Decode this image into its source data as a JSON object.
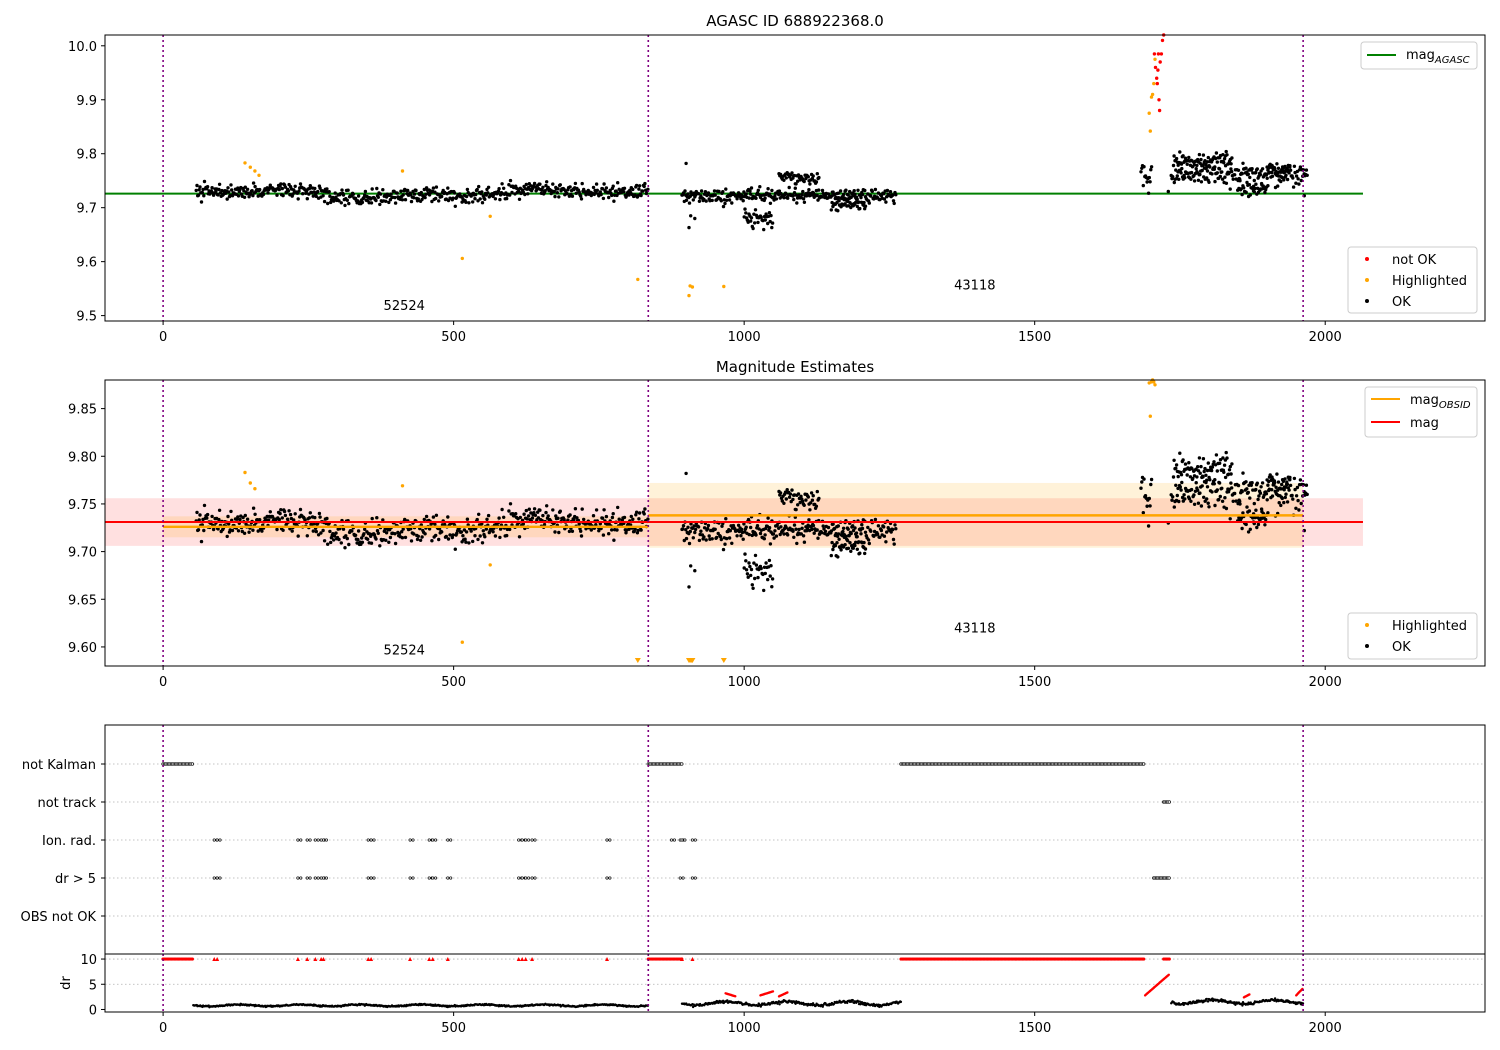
{
  "chart_data": [
    {
      "type": "scatter",
      "title": "AGASC ID 688922368.0",
      "xlim": [
        -100,
        2275
      ],
      "ylim": [
        9.49,
        10.02
      ],
      "xticks": [
        0,
        500,
        1000,
        1500,
        2000
      ],
      "yticks": [
        9.5,
        9.6,
        9.7,
        9.8,
        9.9,
        10.0
      ],
      "ytick_labels": [
        "9.5",
        "9.6",
        "9.7",
        "9.8",
        "9.9",
        "10.0"
      ],
      "obs_boundaries": [
        0,
        835,
        1962
      ],
      "obsid_labels": [
        {
          "x": 415,
          "y": 9.51,
          "text": "52524"
        },
        {
          "x": 1397,
          "y": 9.548,
          "text": "43118"
        }
      ],
      "mag_agasc": 9.726,
      "agasc_line_range": [
        -100,
        2065
      ],
      "colors": {
        "ok": "#000000",
        "highlighted": "#ffa500",
        "not_ok": "#ff0000",
        "mag_agasc": "#008000",
        "boundary": "#800080"
      },
      "legend_top": {
        "position": "top-right",
        "entries": [
          {
            "label": "mag",
            "sub": "AGASC",
            "color": "#008000"
          }
        ]
      },
      "legend_bottom": {
        "position": "bottom-right",
        "entries": [
          {
            "label": "not OK",
            "color": "#ff0000"
          },
          {
            "label": "Highlighted",
            "color": "#ffa500"
          },
          {
            "label": "OK",
            "color": "#000000"
          }
        ]
      },
      "ok_segments": [
        {
          "x": [
            57,
            835
          ],
          "mean": 9.727,
          "sd": 0.012,
          "waves": [
            [
              0.006,
              0.011,
              0.3
            ],
            [
              0.004,
              0.03,
              1.2
            ]
          ]
        },
        {
          "x": [
            893,
            1262
          ],
          "mean": 9.722,
          "sd": 0.011,
          "waves": []
        },
        {
          "x": [
            1683,
            1702
          ],
          "mean": 9.76,
          "sd": 0.025,
          "waves": []
        },
        {
          "x": [
            1735,
            1970
          ],
          "mean": 9.763,
          "sd": 0.016,
          "waves": []
        }
      ],
      "ok_features": [
        {
          "x": [
            1000,
            1050
          ],
          "mean": 9.68,
          "sd": 0.012
        },
        {
          "x": [
            1060,
            1130
          ],
          "mean": 9.755,
          "sd": 0.01
        },
        {
          "x": [
            1150,
            1210
          ],
          "mean": 9.705,
          "sd": 0.012
        },
        {
          "x": [
            1740,
            1840
          ],
          "mean": 9.785,
          "sd": 0.012
        },
        {
          "x": [
            1850,
            1900
          ],
          "mean": 9.735,
          "sd": 0.012
        },
        {
          "x": [
            1900,
            1940
          ],
          "mean": 9.77,
          "sd": 0.012
        }
      ],
      "ok_points": [
        [
          900,
          9.782
        ],
        [
          905,
          9.663
        ],
        [
          908,
          9.685
        ],
        [
          915,
          9.68
        ],
        [
          1730,
          9.73
        ],
        [
          1964,
          9.722
        ]
      ],
      "highlighted_points": [
        [
          141,
          9.783
        ],
        [
          150,
          9.775
        ],
        [
          158,
          9.768
        ],
        [
          165,
          9.76
        ],
        [
          412,
          9.768
        ],
        [
          515,
          9.606
        ],
        [
          563,
          9.684
        ],
        [
          817,
          9.567
        ],
        [
          905,
          9.537
        ],
        [
          907,
          9.555
        ],
        [
          911,
          9.553
        ],
        [
          965,
          9.554
        ],
        [
          1697,
          9.875
        ],
        [
          1699,
          9.842
        ],
        [
          1701,
          9.905
        ],
        [
          1703,
          9.91
        ],
        [
          1705,
          9.93
        ],
        [
          1707,
          9.975
        ]
      ],
      "not_ok_points": [
        [
          1706,
          9.985
        ],
        [
          1708,
          9.96
        ],
        [
          1710,
          9.94
        ],
        [
          1711,
          9.93
        ],
        [
          1712,
          9.955
        ],
        [
          1713,
          9.985
        ],
        [
          1714,
          9.9
        ],
        [
          1715,
          9.88
        ],
        [
          1716,
          9.97
        ],
        [
          1718,
          9.985
        ],
        [
          1720,
          10.01
        ],
        [
          1722,
          10.02
        ]
      ]
    },
    {
      "type": "scatter",
      "title": "Magnitude Estimates",
      "xlim": [
        -100,
        2275
      ],
      "ylim": [
        9.58,
        9.88
      ],
      "xticks": [
        0,
        500,
        1000,
        1500,
        2000
      ],
      "yticks": [
        9.6,
        9.65,
        9.7,
        9.75,
        9.8,
        9.85
      ],
      "ytick_labels": [
        "9.60",
        "9.65",
        "9.70",
        "9.75",
        "9.80",
        "9.85"
      ],
      "obs_boundaries": [
        0,
        835,
        1962
      ],
      "obsid_labels": [
        {
          "x": 415,
          "y": 9.592,
          "text": "52524"
        },
        {
          "x": 1397,
          "y": 9.615,
          "text": "43118"
        }
      ],
      "mag": {
        "value": 9.731,
        "band": [
          9.706,
          9.756
        ],
        "x": [
          -100,
          2065
        ]
      },
      "mag_obsid": [
        {
          "x": [
            0,
            835
          ],
          "value": 9.726,
          "band": [
            9.715,
            9.737
          ]
        },
        {
          "x": [
            835,
            1962
          ],
          "value": 9.738,
          "band": [
            9.704,
            9.772
          ]
        }
      ],
      "colors": {
        "ok": "#000000",
        "highlighted": "#ffa500",
        "mag": "#ff0000",
        "mag_obsid": "#ffa500",
        "boundary": "#800080"
      },
      "legend_top": {
        "position": "top-right",
        "entries": [
          {
            "label": "mag",
            "sub": "OBSID",
            "color": "#ffa500"
          },
          {
            "label": "mag",
            "color": "#ff0000"
          }
        ]
      },
      "legend_bottom": {
        "position": "bottom-right",
        "entries": [
          {
            "label": "Highlighted",
            "color": "#ffa500"
          },
          {
            "label": "OK",
            "color": "#000000"
          }
        ]
      },
      "highlighted_points": [
        [
          141,
          9.783
        ],
        [
          150,
          9.772
        ],
        [
          158,
          9.766
        ],
        [
          412,
          9.769
        ],
        [
          515,
          9.605
        ],
        [
          563,
          9.686
        ],
        [
          1697,
          9.877
        ],
        [
          1699,
          9.842
        ],
        [
          1701,
          9.878
        ],
        [
          1703,
          9.88
        ],
        [
          1705,
          9.878
        ],
        [
          1707,
          9.875
        ]
      ],
      "offscale_markers": [
        817,
        905,
        907,
        909,
        911,
        965
      ]
    },
    {
      "type": "scatter",
      "title": "",
      "xlim": [
        -100,
        2275
      ],
      "categories": [
        "not Kalman",
        "not track",
        "Ion. rad.",
        "dr > 5",
        "OBS not OK"
      ],
      "flag_ranges": [
        {
          "category": "not Kalman",
          "ranges": [
            [
              0,
              52
            ],
            [
              835,
              893
            ],
            [
              1270,
              1690
            ]
          ]
        },
        {
          "category": "not track",
          "ranges": [
            [
              1722,
              1732
            ]
          ]
        },
        {
          "category": "Ion. rad.",
          "points": [
            88,
            93,
            232,
            248,
            262,
            272,
            276,
            353,
            358,
            425,
            458,
            464,
            490,
            612,
            618,
            624,
            635,
            764,
            875,
            890,
            893,
            911
          ]
        },
        {
          "category": "dr > 5",
          "points": [
            88,
            93,
            232,
            248,
            262,
            272,
            276,
            353,
            358,
            425,
            458,
            464,
            490,
            612,
            618,
            624,
            635,
            764,
            890,
            911
          ],
          "ranges": [
            [
              1705,
              1732
            ]
          ]
        },
        {
          "category": "OBS not OK",
          "ranges": []
        }
      ]
    },
    {
      "type": "scatter",
      "title": "",
      "xlim": [
        -100,
        2275
      ],
      "ylabel": "dr",
      "ylim": [
        -0.5,
        11
      ],
      "yticks": [
        0,
        5,
        10
      ],
      "ytick_labels": [
        "0",
        "5",
        "10"
      ],
      "xticks": [
        0,
        500,
        1000,
        1500,
        2000
      ],
      "obs_boundaries": [
        0,
        835,
        1962
      ],
      "colors": {
        "ok": "#000000",
        "flagged": "#ff0000",
        "boundary": "#800080"
      },
      "flagged_at_ten": {
        "ranges": [
          [
            0,
            52
          ],
          [
            835,
            893
          ],
          [
            1270,
            1690
          ],
          [
            1722,
            1732
          ]
        ],
        "points": [
          88,
          93,
          232,
          248,
          262,
          272,
          276,
          353,
          358,
          425,
          458,
          464,
          490,
          612,
          618,
          624,
          635,
          764,
          893,
          911
        ]
      },
      "dr_segments": [
        {
          "x": [
            52,
            835
          ],
          "mean": 0.8,
          "amp": 0.3,
          "color": "ok"
        },
        {
          "x": [
            893,
            1270
          ],
          "mean": 1.2,
          "amp": 0.6,
          "color": "ok"
        },
        {
          "x": [
            1735,
            1962
          ],
          "mean": 1.5,
          "amp": 0.6,
          "color": "ok"
        }
      ],
      "dr_red_ramps": [
        {
          "x": [
            1690,
            1732
          ],
          "y": [
            2.8,
            7.0
          ]
        },
        {
          "x": [
            1950,
            1962
          ],
          "y": [
            2.8,
            4.2
          ]
        },
        {
          "x": [
            968,
            985
          ],
          "y": [
            3.2,
            2.6
          ]
        },
        {
          "x": [
            1028,
            1050
          ],
          "y": [
            2.8,
            3.6
          ]
        },
        {
          "x": [
            1060,
            1075
          ],
          "y": [
            2.6,
            3.4
          ]
        },
        {
          "x": [
            1860,
            1870
          ],
          "y": [
            2.4,
            3.0
          ]
        }
      ]
    }
  ]
}
